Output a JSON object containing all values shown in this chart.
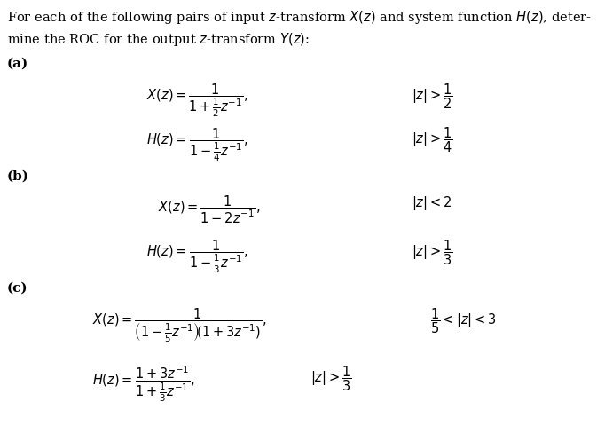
{
  "background_color": "#ffffff",
  "text_color": "#000000",
  "figsize": [
    6.73,
    4.97
  ],
  "dpi": 100,
  "title_line1": "For each of the following pairs of input $z$-transform $X(z)$ and system function $H(z)$, deter-",
  "title_line2": "mine the ROC for the output $z$-transform $Y(z)$:",
  "label_a": "(a)",
  "label_b": "(b)",
  "label_c": "(c)",
  "a_Xz": "$X(z) = \\dfrac{1}{1+\\frac{1}{2}z^{-1}},$",
  "a_Xz_roc": "$|z| > \\dfrac{1}{2}$",
  "a_Hz": "$H(z) = \\dfrac{1}{1-\\frac{1}{4}z^{-1}},$",
  "a_Hz_roc": "$|z| > \\dfrac{1}{4}$",
  "b_Xz": "$X(z) = \\dfrac{1}{1-2z^{-1}},$",
  "b_Xz_roc": "$|z| < 2$",
  "b_Hz": "$H(z) = \\dfrac{1}{1-\\frac{1}{3}z^{-1}},$",
  "b_Hz_roc": "$|z| > \\dfrac{1}{3}$",
  "c_Xz": "$X(z) = \\dfrac{1}{\\left(1-\\frac{1}{5}z^{-1}\\right)\\!\\left(1+3z^{-1}\\right)},$",
  "c_Xz_roc": "$\\dfrac{1}{5} < |z| < 3$",
  "c_Hz": "$H(z) = \\dfrac{1+3z^{-1}}{1+\\frac{1}{3}z^{-1}},$",
  "c_Hz_roc": "$|z| > \\dfrac{1}{3}$",
  "fs_title": 10.5,
  "fs_label": 11,
  "fs_eq": 10.5
}
